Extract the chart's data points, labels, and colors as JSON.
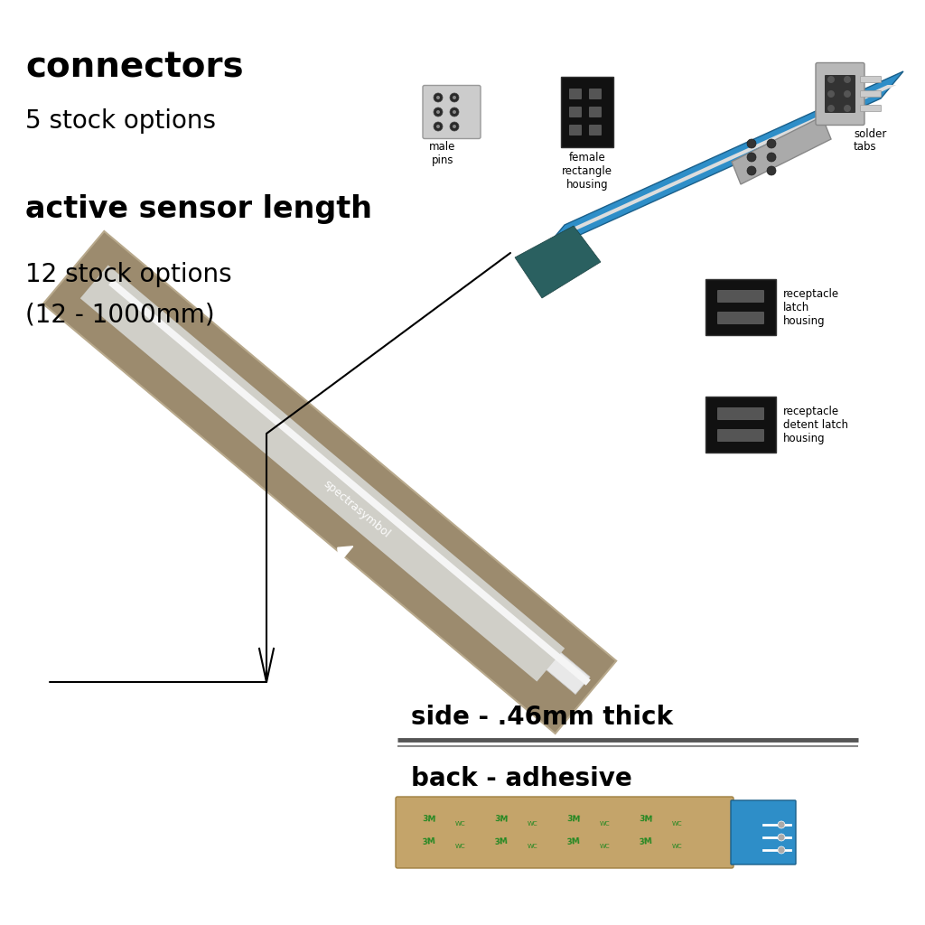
{
  "bg_color": "#ffffff",
  "text_connectors": "connectors",
  "text_5stock": "5 stock options",
  "text_active": "active sensor length",
  "text_12stock": "12 stock options",
  "text_range": "(12 - 1000mm)",
  "text_side": "side - .46mm thick",
  "text_back": "back - adhesive",
  "text_male_pins": "male\npins",
  "text_female_rect": "female\nrectangle\nhousing",
  "text_solder": "solder\ntabs",
  "text_receptacle_latch": "receptacle\nlatch\nhousing",
  "text_receptacle_detent": "receptacle\ndetent latch\nhousing",
  "text_spectra": "spectrasymbol",
  "sensor_color": "#9c8b6e",
  "sensor_border_color": "#b8a98c",
  "sensor_strip_color": "#d8d8d8",
  "blue_cable_color": "#2e8ec8",
  "blue_cable_dark": "#1a5f8a",
  "connector_black": "#1a1a1a",
  "connector_dark_gray": "#333333",
  "connector_gray": "#666666",
  "connector_silver": "#b0b0b0",
  "connector_silver2": "#c8c8c8",
  "side_view_color": "#888888",
  "side_view_dark": "#555555",
  "adhesive_color": "#c4a46a",
  "adhesive_border": "#a08040",
  "green_text_color": "#228822",
  "teal_tab_color": "#2a6060",
  "annotation_color": "#000000"
}
